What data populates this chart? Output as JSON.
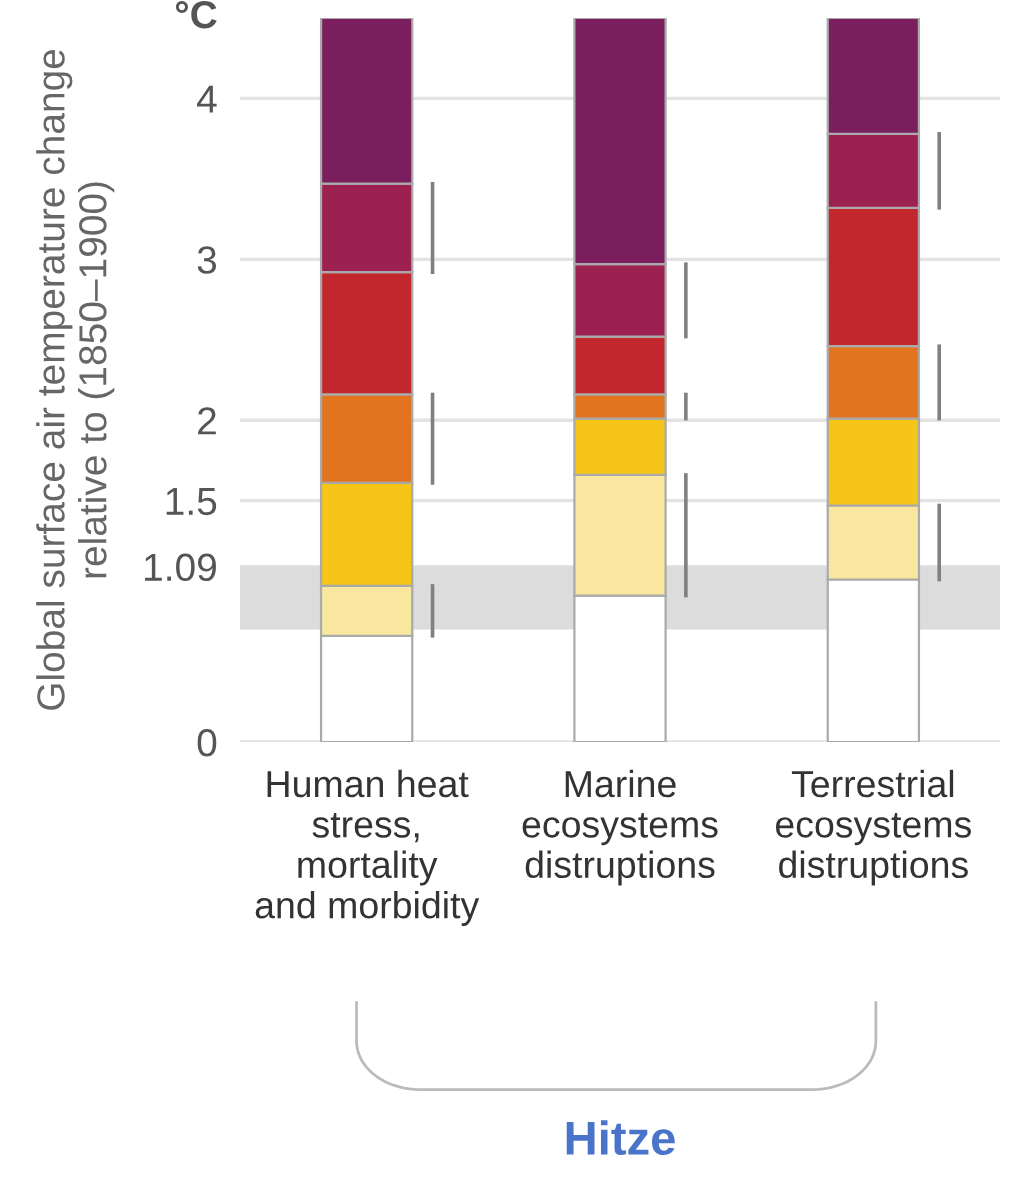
{
  "chart_data": {
    "type": "bar",
    "stacked": true,
    "xlabel": "Hitze",
    "ylabel": "Global surface air temperature change\nrelative to (1850–1900)",
    "annotations": [
      "°C"
    ],
    "categories": [
      "Human heat\nstress,\nmortality\nand morbidity",
      "Marine\necosystems\ndistruptions",
      "Terrestrial\necosystems\ndistruptions"
    ],
    "series": [
      {
        "color": "#ffffff",
        "values": [
          0.66,
          0.91,
          1.01
        ]
      },
      {
        "color": "#f9e7a0",
        "values": [
          0.31,
          0.75,
          0.46
        ]
      },
      {
        "color": "#f5c518",
        "values": [
          0.64,
          0.35,
          0.54
        ]
      },
      {
        "color": "#e27420",
        "values": [
          0.55,
          0.15,
          0.45
        ]
      },
      {
        "color": "#c1272d",
        "values": [
          0.76,
          0.36,
          0.86
        ]
      },
      {
        "color": "#9c2050",
        "values": [
          0.55,
          0.45,
          0.46
        ]
      },
      {
        "color": "#7b1e5e",
        "values": [
          1.03,
          1.53,
          0.72
        ]
      }
    ],
    "ylim": [
      0,
      4.5
    ],
    "yticks": [
      0,
      1.09,
      1.5,
      2,
      3,
      4
    ],
    "bands": [
      {
        "axis": "y",
        "from": 0.7,
        "to": 1.09,
        "color": "#dcdcdc"
      }
    ],
    "grid": "y"
  }
}
